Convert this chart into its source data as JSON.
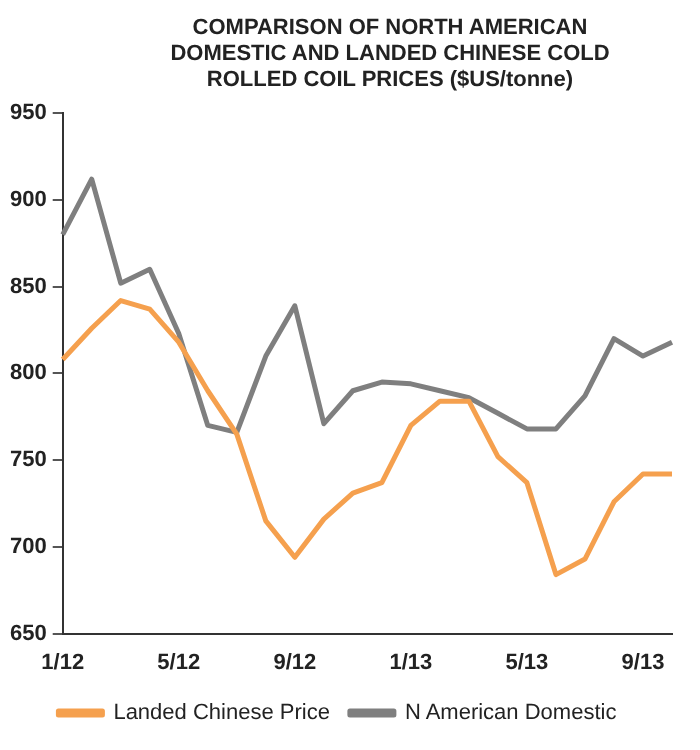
{
  "chart_data": {
    "type": "line",
    "title": "COMPARISON OF NORTH AMERICAN DOMESTIC AND LANDED CHINESE COLD ROLLED COIL PRICES ($US/tonne)",
    "categories": [
      "1/12",
      null,
      null,
      null,
      "5/12",
      null,
      null,
      null,
      "9/12",
      null,
      null,
      null,
      "1/13",
      null,
      null,
      null,
      "5/13",
      null,
      null,
      null,
      "9/13",
      null
    ],
    "series": [
      {
        "name": "Landed Chinese Price",
        "color": "#f5a04e",
        "values": [
          808,
          826,
          842,
          837,
          818,
          790,
          765,
          715,
          694,
          716,
          731,
          737,
          770,
          784,
          784,
          752,
          737,
          684,
          693,
          726,
          742,
          742
        ]
      },
      {
        "name": "N American Domestic",
        "color": "#7f7f7f",
        "values": [
          880,
          912,
          852,
          860,
          823,
          770,
          766,
          810,
          839,
          771,
          790,
          795,
          794,
          790,
          786,
          777,
          768,
          768,
          787,
          820,
          810,
          818
        ]
      }
    ],
    "ylim": [
      650,
      950
    ],
    "yticks": [
      650,
      700,
      750,
      800,
      850,
      900,
      950
    ],
    "grid": false,
    "legend": "bottom",
    "marker": "none",
    "line_style": "solid"
  }
}
